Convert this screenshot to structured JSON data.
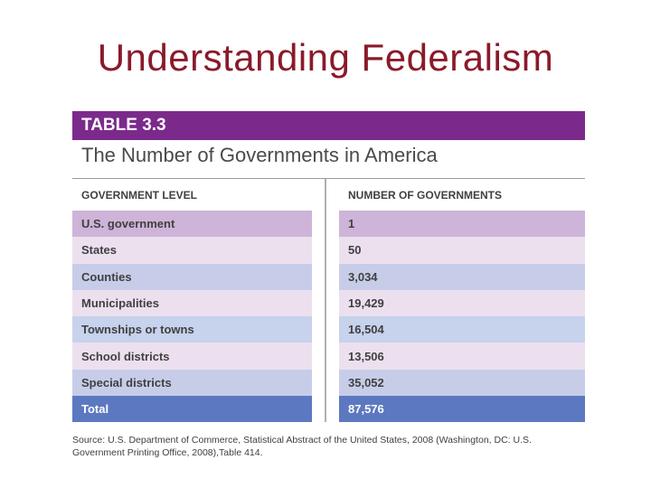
{
  "slide": {
    "title": "Understanding Federalism"
  },
  "table": {
    "label": "TABLE 3.3",
    "subtitle": "The Number of Governments in America",
    "col_headers": [
      "GOVERNMENT LEVEL",
      "NUMBER OF GOVERNMENTS"
    ],
    "rows": [
      {
        "level": "U.S. government",
        "count": "1",
        "color": "#cdb4d8"
      },
      {
        "level": "States",
        "count": "50",
        "color": "#ece0ef"
      },
      {
        "level": "Counties",
        "count": "3,034",
        "color": "#c7cde8"
      },
      {
        "level": "Municipalities",
        "count": "19,429",
        "color": "#ece0ef"
      },
      {
        "level": "Townships or towns",
        "count": "16,504",
        "color": "#c7d2ec"
      },
      {
        "level": "School districts",
        "count": "13,506",
        "color": "#ece0ef"
      },
      {
        "level": "Special districts",
        "count": "35,052",
        "color": "#c7cde8"
      }
    ],
    "total": {
      "level": "Total",
      "count": "87,576",
      "color": "#5c78c0"
    },
    "source": "Source: U.S. Department of Commerce, Statistical Abstract of the United States, 2008 (Washington, DC: U.S. Government Printing Office, 2008),Table 414."
  },
  "colors": {
    "title": "#8a1a2a",
    "table_header": "#7b2a8c"
  }
}
